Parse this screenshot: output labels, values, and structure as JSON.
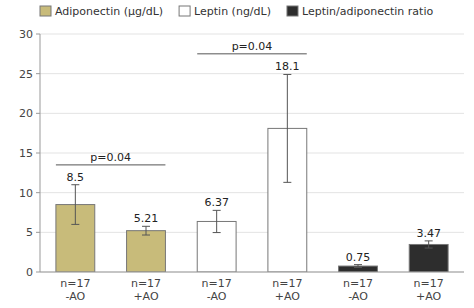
{
  "chart_data": {
    "type": "bar",
    "stacked": true,
    "grid": true,
    "legend": "upper left",
    "data_labels": true,
    "categories": [
      "n=17\n-AO",
      "n=17\n+AO",
      "n=17\n-AO",
      "n=17\n+AO",
      "n=17\n-AO",
      "n=17\n+AO"
    ],
    "series": [
      {
        "name": "Adiponectin (µg/dL)",
        "color": "#c8bb7a",
        "values": [
          8.5,
          5.21,
          null,
          null,
          null,
          null
        ],
        "errors": [
          2.5,
          0.55,
          null,
          null,
          null,
          null
        ]
      },
      {
        "name": "Leptin (ng/dL)",
        "color": "#ffffff",
        "values": [
          null,
          null,
          6.37,
          18.1,
          null,
          null
        ],
        "errors": [
          null,
          null,
          1.4,
          6.8,
          null,
          null
        ]
      },
      {
        "name": "Leptin/adiponectin ratio",
        "color": "#2d2d2d",
        "values": [
          null,
          null,
          null,
          null,
          0.75,
          3.47
        ],
        "errors": [
          null,
          null,
          null,
          null,
          0.18,
          0.45
        ]
      }
    ],
    "annotations": [
      {
        "text": "p=0.04",
        "y": 13.5,
        "between": [
          0,
          1
        ]
      },
      {
        "text": "p=0.04",
        "y": 27.5,
        "between": [
          2,
          3
        ]
      }
    ],
    "ylim": [
      0,
      30
    ],
    "yticks": [
      0,
      5,
      10,
      15,
      20,
      25,
      30
    ]
  }
}
